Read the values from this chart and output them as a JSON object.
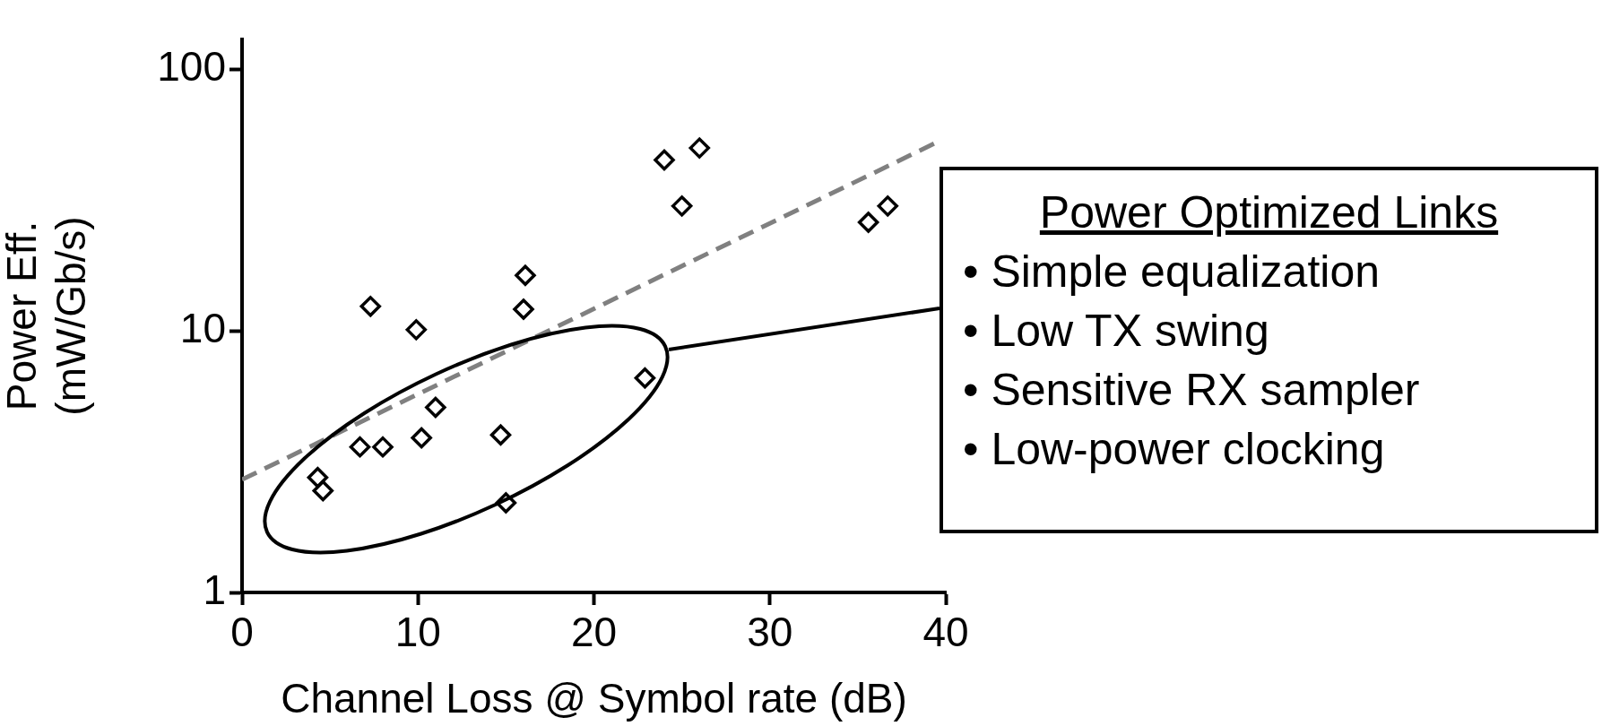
{
  "chart_data": {
    "type": "scatter",
    "xlabel": "Channel Loss @ Symbol rate (dB)",
    "ylabel": "Power Eff.\n(mW/Gb/s)",
    "log": "y",
    "xlim": [
      0,
      40
    ],
    "xticks": [
      0,
      10,
      20,
      30,
      40
    ],
    "ylim": [
      1,
      130
    ],
    "yticks": [
      1,
      10,
      100
    ],
    "grid": false,
    "legend": false,
    "marker": "diamond",
    "series": [
      {
        "color": "#000000",
        "x": [
          4.3,
          4.6,
          6.7,
          8.0,
          7.3,
          9.9,
          10.2,
          11.0,
          14.7,
          15.0,
          16.0,
          16.1,
          22.9,
          24.0,
          25.0,
          26.0,
          35.6,
          36.7
        ],
        "values": [
          2.75,
          2.45,
          3.6,
          3.6,
          12.4,
          10.1,
          3.9,
          5.1,
          4.0,
          2.2,
          12.1,
          16.3,
          6.6,
          45,
          30,
          50,
          26,
          30
        ]
      },
      {
        "type": "line",
        "color": "#808080",
        "line_style": "dashed",
        "marker": "none",
        "x": [
          0,
          39.6
        ],
        "values": [
          2.7,
          53
        ]
      }
    ],
    "annotations": [
      "Power Optimized Links",
      "• Simple equalization",
      "• Low TX swing",
      "• Sensitive RX sampler",
      "• Low-power clocking"
    ]
  }
}
